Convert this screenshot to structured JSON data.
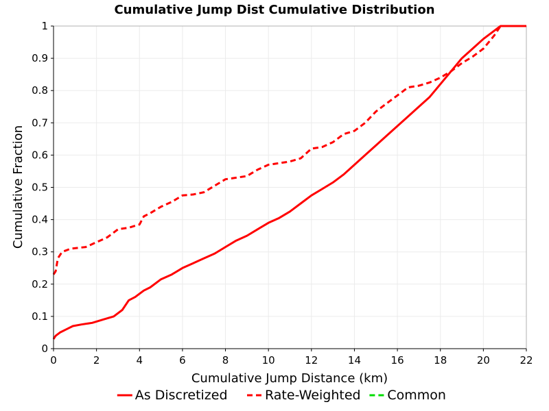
{
  "chart_data": {
    "type": "line",
    "title": "Cumulative Jump Dist Cumulative Distribution",
    "xlabel": "Cumulative Jump Distance (km)",
    "ylabel": "Cumulative Fraction",
    "xlim": [
      0,
      22
    ],
    "ylim": [
      0,
      1
    ],
    "x_ticks": [
      "0",
      "2",
      "4",
      "6",
      "8",
      "10",
      "12",
      "14",
      "16",
      "18",
      "20",
      "22"
    ],
    "y_ticks": [
      "0",
      "0.1",
      "0.2",
      "0.3",
      "0.4",
      "0.5",
      "0.6",
      "0.7",
      "0.8",
      "0.9",
      "1"
    ],
    "grid": true,
    "legend_position": "bottom",
    "series": [
      {
        "name": "As Discretized",
        "color": "#ff0000",
        "dash": "solid",
        "x": [
          0.0,
          0.1,
          0.3,
          0.6,
          0.9,
          1.3,
          1.8,
          2.3,
          2.8,
          3.2,
          3.5,
          3.8,
          4.2,
          4.5,
          5.0,
          5.5,
          6.0,
          6.5,
          7.0,
          7.5,
          8.0,
          8.5,
          9.0,
          9.5,
          10.0,
          10.5,
          11.0,
          11.5,
          12.0,
          12.5,
          13.0,
          13.5,
          14.0,
          14.5,
          15.0,
          15.5,
          16.0,
          16.5,
          17.0,
          17.5,
          18.0,
          18.5,
          19.0,
          19.5,
          20.0,
          20.5,
          20.8,
          21.5,
          22.0
        ],
        "y": [
          0.03,
          0.04,
          0.05,
          0.06,
          0.07,
          0.075,
          0.08,
          0.09,
          0.1,
          0.12,
          0.15,
          0.16,
          0.18,
          0.19,
          0.215,
          0.23,
          0.25,
          0.265,
          0.28,
          0.295,
          0.315,
          0.335,
          0.35,
          0.37,
          0.39,
          0.405,
          0.425,
          0.45,
          0.475,
          0.495,
          0.515,
          0.54,
          0.57,
          0.6,
          0.63,
          0.66,
          0.69,
          0.72,
          0.75,
          0.78,
          0.82,
          0.86,
          0.9,
          0.93,
          0.96,
          0.985,
          1.0,
          1.0,
          1.0
        ]
      },
      {
        "name": "Rate-Weighted",
        "color": "#ff0000",
        "dash": "dashed",
        "x": [
          0.0,
          0.1,
          0.2,
          0.4,
          0.8,
          1.5,
          2.0,
          2.5,
          3.0,
          3.5,
          4.0,
          4.2,
          4.5,
          5.0,
          5.5,
          6.0,
          6.5,
          7.0,
          7.5,
          8.0,
          8.5,
          9.0,
          9.5,
          10.0,
          10.5,
          11.0,
          11.5,
          12.0,
          12.5,
          13.0,
          13.5,
          14.0,
          14.5,
          15.0,
          15.5,
          16.0,
          16.5,
          17.0,
          17.5,
          18.0,
          18.5,
          19.0,
          19.5,
          20.0,
          20.5,
          20.8,
          21.5,
          22.0
        ],
        "y": [
          0.23,
          0.24,
          0.28,
          0.3,
          0.31,
          0.315,
          0.33,
          0.345,
          0.37,
          0.375,
          0.385,
          0.41,
          0.42,
          0.44,
          0.455,
          0.475,
          0.478,
          0.485,
          0.505,
          0.525,
          0.53,
          0.535,
          0.555,
          0.57,
          0.575,
          0.58,
          0.59,
          0.62,
          0.625,
          0.64,
          0.665,
          0.675,
          0.7,
          0.735,
          0.76,
          0.785,
          0.81,
          0.815,
          0.825,
          0.84,
          0.86,
          0.885,
          0.905,
          0.93,
          0.97,
          1.0,
          1.0,
          1.0
        ]
      },
      {
        "name": "Common",
        "color": "#00dd00",
        "dash": "dashed",
        "x": [],
        "y": []
      }
    ]
  }
}
